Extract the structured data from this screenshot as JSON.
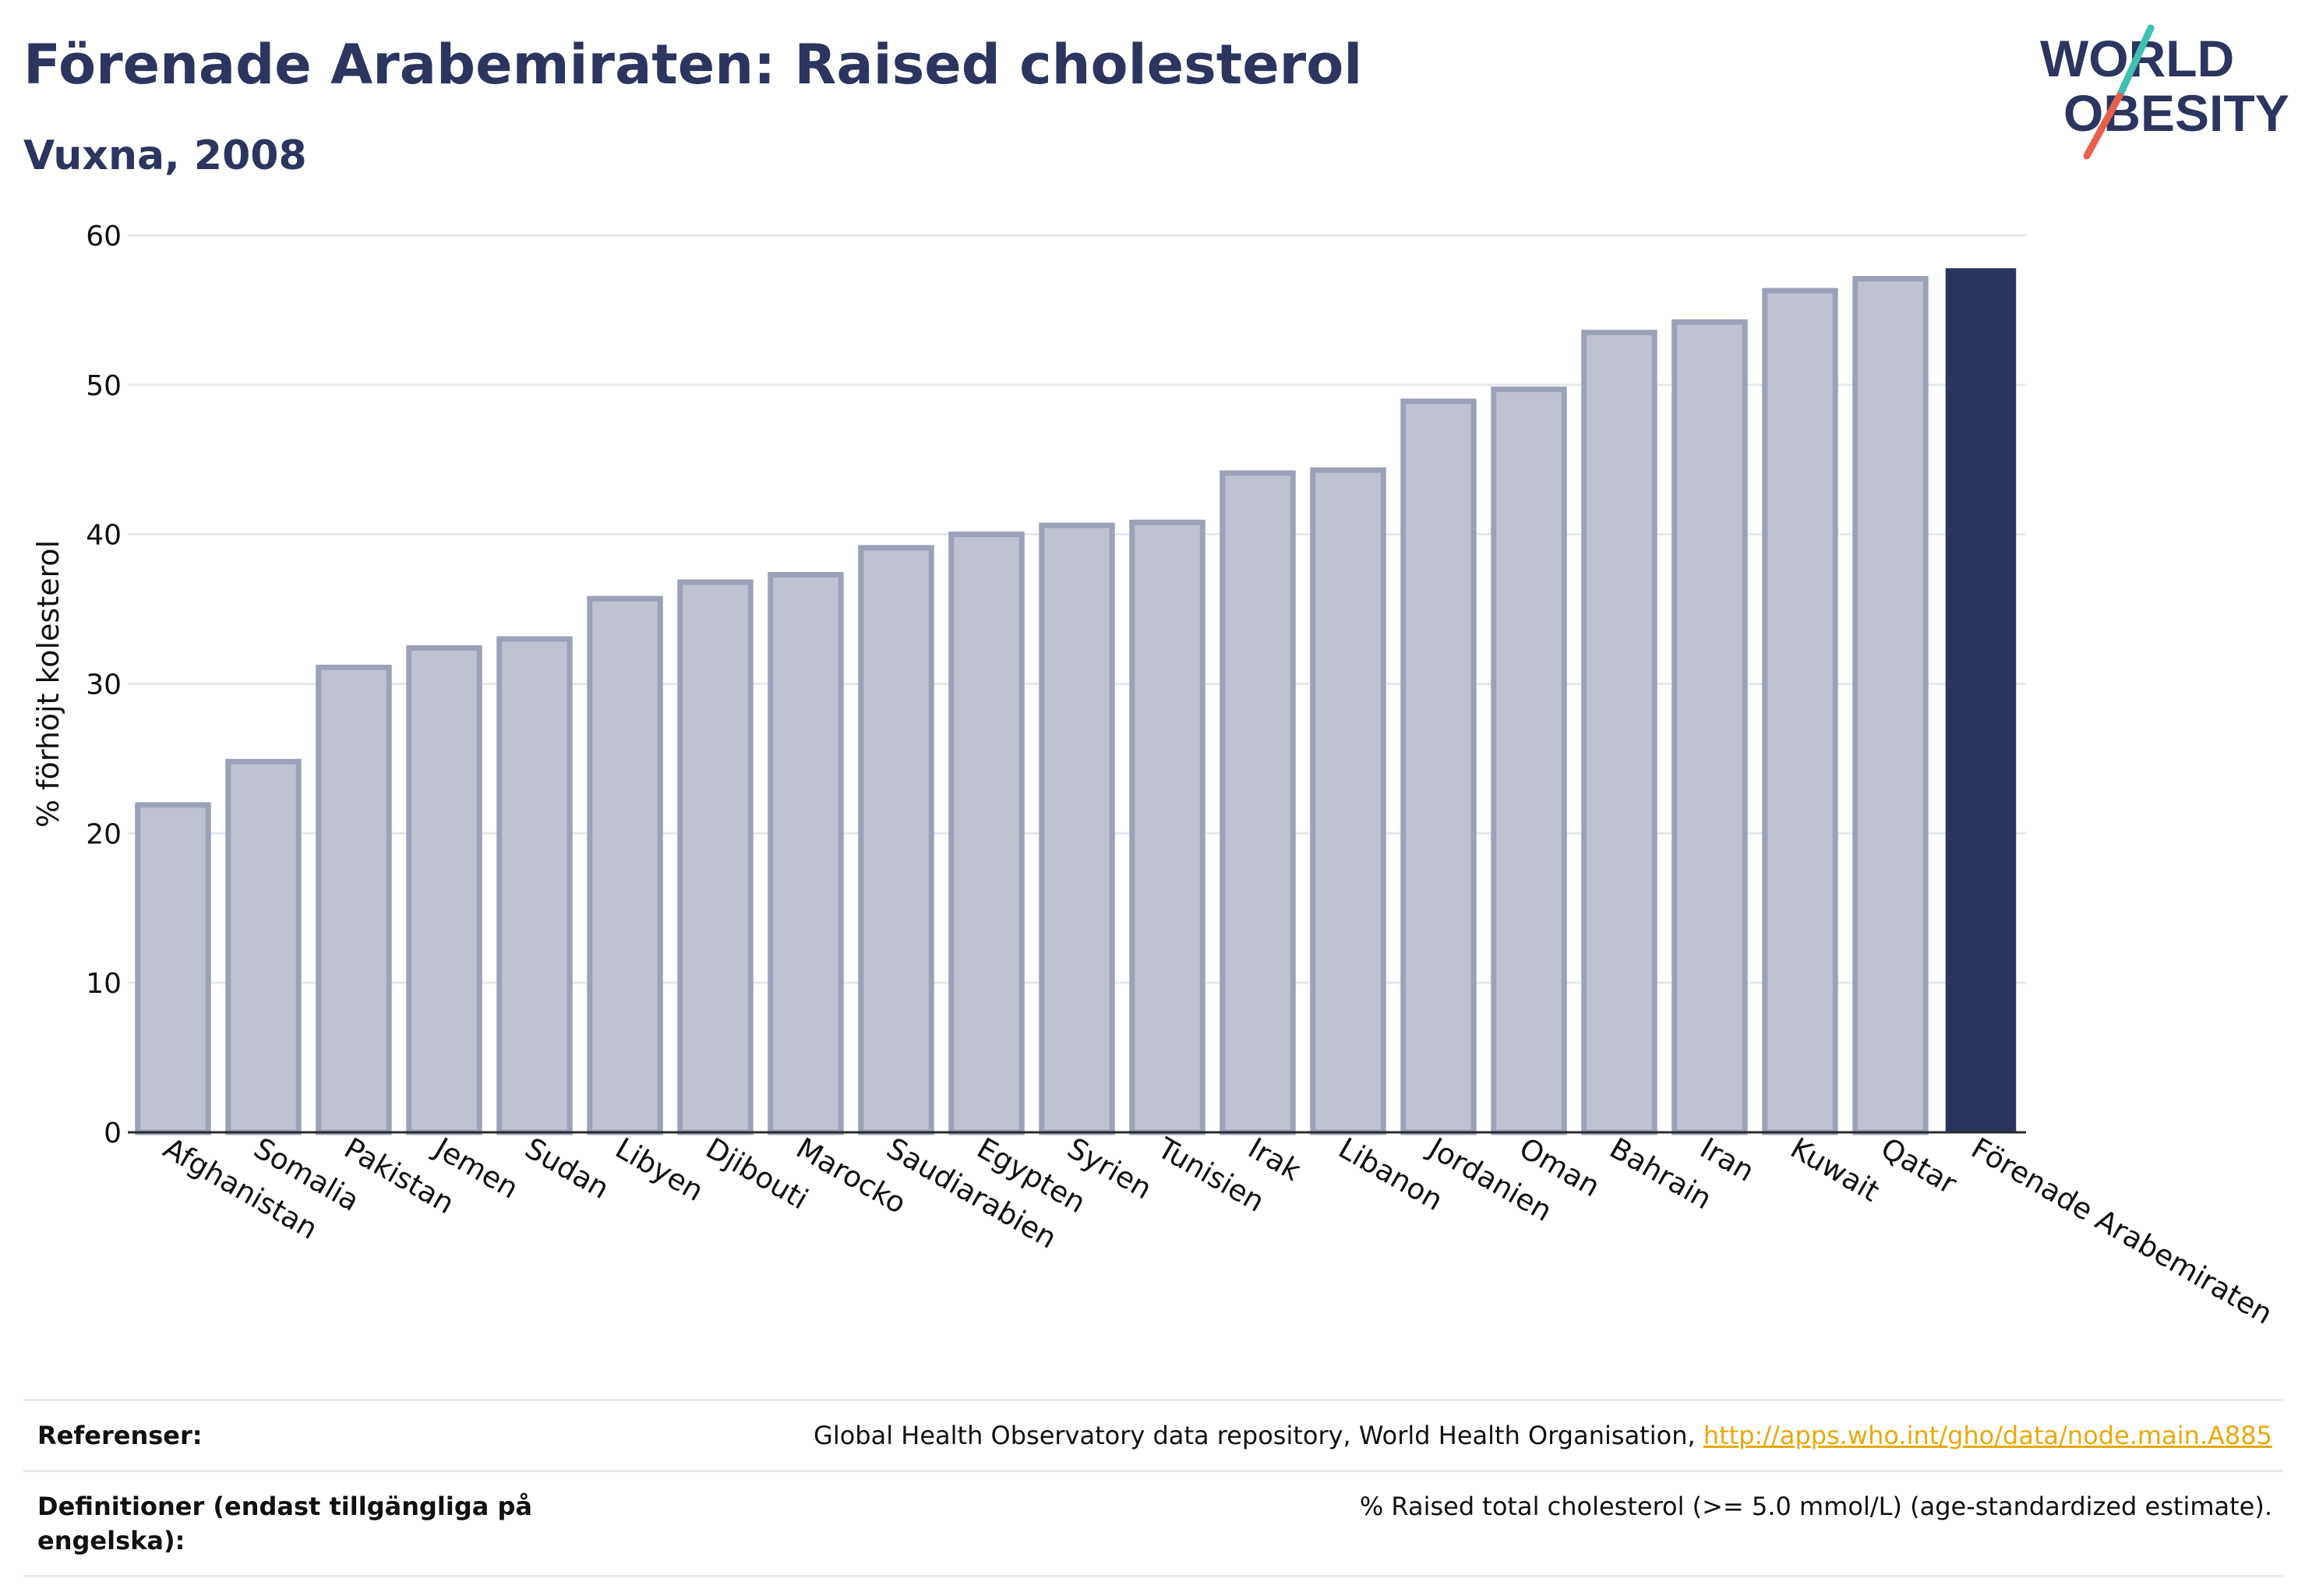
{
  "header": {
    "title": "Förenade Arabemiraten: Raised cholesterol",
    "subtitle": "Vuxna, 2008"
  },
  "logo": {
    "line1": "WORLD",
    "line2": "OBESITY",
    "colors": {
      "text": "#2b355f",
      "slash_top": "#3fbfb5",
      "slash_bottom": "#e8604c"
    }
  },
  "chart_data": {
    "type": "bar",
    "ylabel": "% förhöjt kolesterol",
    "xlabel": "",
    "ylim": [
      0,
      60
    ],
    "yticks": [
      0,
      10,
      20,
      30,
      40,
      50,
      60
    ],
    "grid": true,
    "highlight": "Förenade Arabemiraten",
    "colors": {
      "bar": "#bfc2d0",
      "bar_edge": "#9ba1b9",
      "highlight": "#2b355f",
      "grid": "#e6e8ee"
    },
    "categories": [
      "Afghanistan",
      "Somalia",
      "Pakistan",
      "Jemen",
      "Sudan",
      "Libyen",
      "Djibouti",
      "Marocko",
      "Saudiarabien",
      "Egypten",
      "Syrien",
      "Tunisien",
      "Irak",
      "Libanon",
      "Jordanien",
      "Oman",
      "Bahrain",
      "Iran",
      "Kuwait",
      "Qatar",
      "Förenade Arabemiraten"
    ],
    "values": [
      21.9,
      24.8,
      31.1,
      32.4,
      33.0,
      35.7,
      36.8,
      37.3,
      39.1,
      40.0,
      40.6,
      40.8,
      44.1,
      44.3,
      48.9,
      49.7,
      53.5,
      54.2,
      56.3,
      57.1,
      57.8
    ]
  },
  "references": {
    "rows": [
      {
        "key": "Referenser:",
        "text": "Global Health Observatory data repository, World Health Organisation, ",
        "link": "http://apps.who.int/gho/data/node.main.A885"
      },
      {
        "key": "Definitioner (endast tillgängliga på engelska):",
        "text": "% Raised total cholesterol (>= 5.0 mmol/L) (age-standardized estimate).",
        "link": ""
      }
    ]
  }
}
